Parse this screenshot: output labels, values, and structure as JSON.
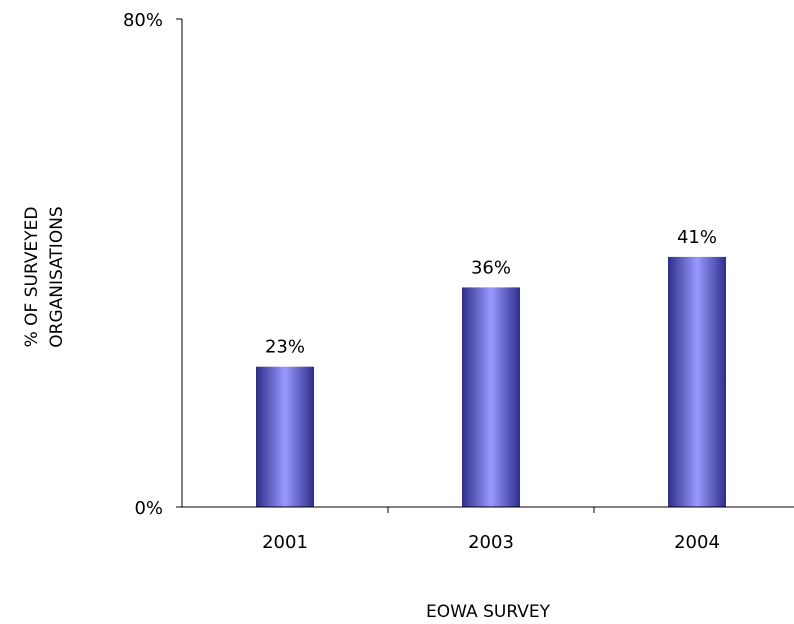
{
  "chart_data": {
    "type": "bar",
    "categories": [
      "2001",
      "2003",
      "2004"
    ],
    "values": [
      23,
      36,
      41
    ],
    "data_labels": [
      "23%",
      "36%",
      "41%"
    ],
    "title": "",
    "xlabel": "EOWA SURVEY",
    "ylabel_lines": [
      "% OF SURVEYED",
      "ORGANISATIONS"
    ],
    "ylim": [
      0,
      80
    ],
    "y_tick_labels": [
      "0%",
      "80%"
    ],
    "grid": false,
    "bar_colors": {
      "edge": "#2e2e8a",
      "mid": "#9999ff"
    },
    "axis_color": "#000000"
  }
}
